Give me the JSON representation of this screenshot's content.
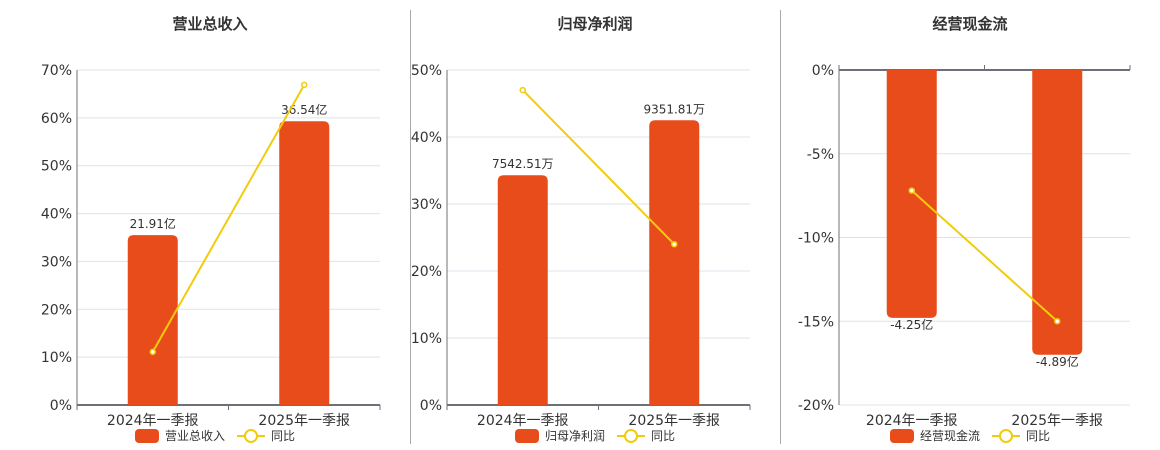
{
  "colors": {
    "bar": "#E84C1B",
    "line": "#F2CC0C",
    "grid": "#DDE3EC",
    "axis": "#6E7079"
  },
  "charts": [
    {
      "title": "营业总收入",
      "legend": {
        "bar": "营业总收入",
        "line": "同比"
      },
      "categories": [
        "2024年一季报",
        "2025年一季报"
      ],
      "y_ticks": [
        "70%",
        "60%",
        "50%",
        "40%",
        "30%",
        "20%",
        "10%",
        "0%"
      ],
      "bar_labels": [
        "21.91亿",
        "36.54亿"
      ]
    },
    {
      "title": "归母净利润",
      "legend": {
        "bar": "归母净利润",
        "line": "同比"
      },
      "categories": [
        "2024年一季报",
        "2025年一季报"
      ],
      "y_ticks": [
        "50%",
        "40%",
        "30%",
        "20%",
        "10%",
        "0%"
      ],
      "bar_labels": [
        "7542.51万",
        "9351.81万"
      ]
    },
    {
      "title": "经营现金流",
      "legend": {
        "bar": "经营现金流",
        "line": "同比"
      },
      "categories": [
        "2024年一季报",
        "2025年一季报"
      ],
      "y_ticks": [
        "0%",
        "-5%",
        "-10%",
        "-15%",
        "-20%"
      ],
      "bar_labels": [
        "-4.25亿",
        "-4.89亿"
      ]
    }
  ],
  "chart_data": [
    {
      "type": "bar",
      "title": "营业总收入",
      "categories": [
        "2024年一季报",
        "2025年一季报"
      ],
      "series": [
        {
          "name": "营业总收入",
          "type": "bar",
          "values": [
            21.91,
            36.54
          ],
          "unit": "亿",
          "labels": [
            "21.91亿",
            "36.54亿"
          ],
          "bar_height_pct": [
            35.5,
            59.3
          ]
        },
        {
          "name": "同比",
          "type": "line",
          "values": [
            11.1,
            66.9
          ],
          "unit": "%"
        }
      ],
      "xlabel": "",
      "ylabel": "",
      "ylim": [
        0,
        70
      ],
      "yticks": [
        0,
        10,
        20,
        30,
        40,
        50,
        60,
        70
      ],
      "grid": true,
      "legend_position": "bottom"
    },
    {
      "type": "bar",
      "title": "归母净利润",
      "categories": [
        "2024年一季报",
        "2025年一季报"
      ],
      "series": [
        {
          "name": "归母净利润",
          "type": "bar",
          "values": [
            7542.51,
            9351.81
          ],
          "unit": "万",
          "labels": [
            "7542.51万",
            "9351.81万"
          ],
          "bar_height_pct": [
            34.3,
            42.5
          ]
        },
        {
          "name": "同比",
          "type": "line",
          "values": [
            47.0,
            24.0
          ],
          "unit": "%"
        }
      ],
      "xlabel": "",
      "ylabel": "",
      "ylim": [
        0,
        50
      ],
      "yticks": [
        0,
        10,
        20,
        30,
        40,
        50
      ],
      "grid": true,
      "legend_position": "bottom"
    },
    {
      "type": "bar",
      "title": "经营现金流",
      "categories": [
        "2024年一季报",
        "2025年一季报"
      ],
      "series": [
        {
          "name": "经营现金流",
          "type": "bar",
          "values": [
            -4.25,
            -4.89
          ],
          "unit": "亿",
          "labels": [
            "-4.25亿",
            "-4.89亿"
          ],
          "bar_height_pct": [
            -14.8,
            -17.0
          ]
        },
        {
          "name": "同比",
          "type": "line",
          "values": [
            -7.2,
            -15.0
          ],
          "unit": "%"
        }
      ],
      "xlabel": "",
      "ylabel": "",
      "ylim": [
        -20,
        0
      ],
      "yticks": [
        -20,
        -15,
        -10,
        -5,
        0
      ],
      "grid": true,
      "legend_position": "bottom"
    }
  ]
}
